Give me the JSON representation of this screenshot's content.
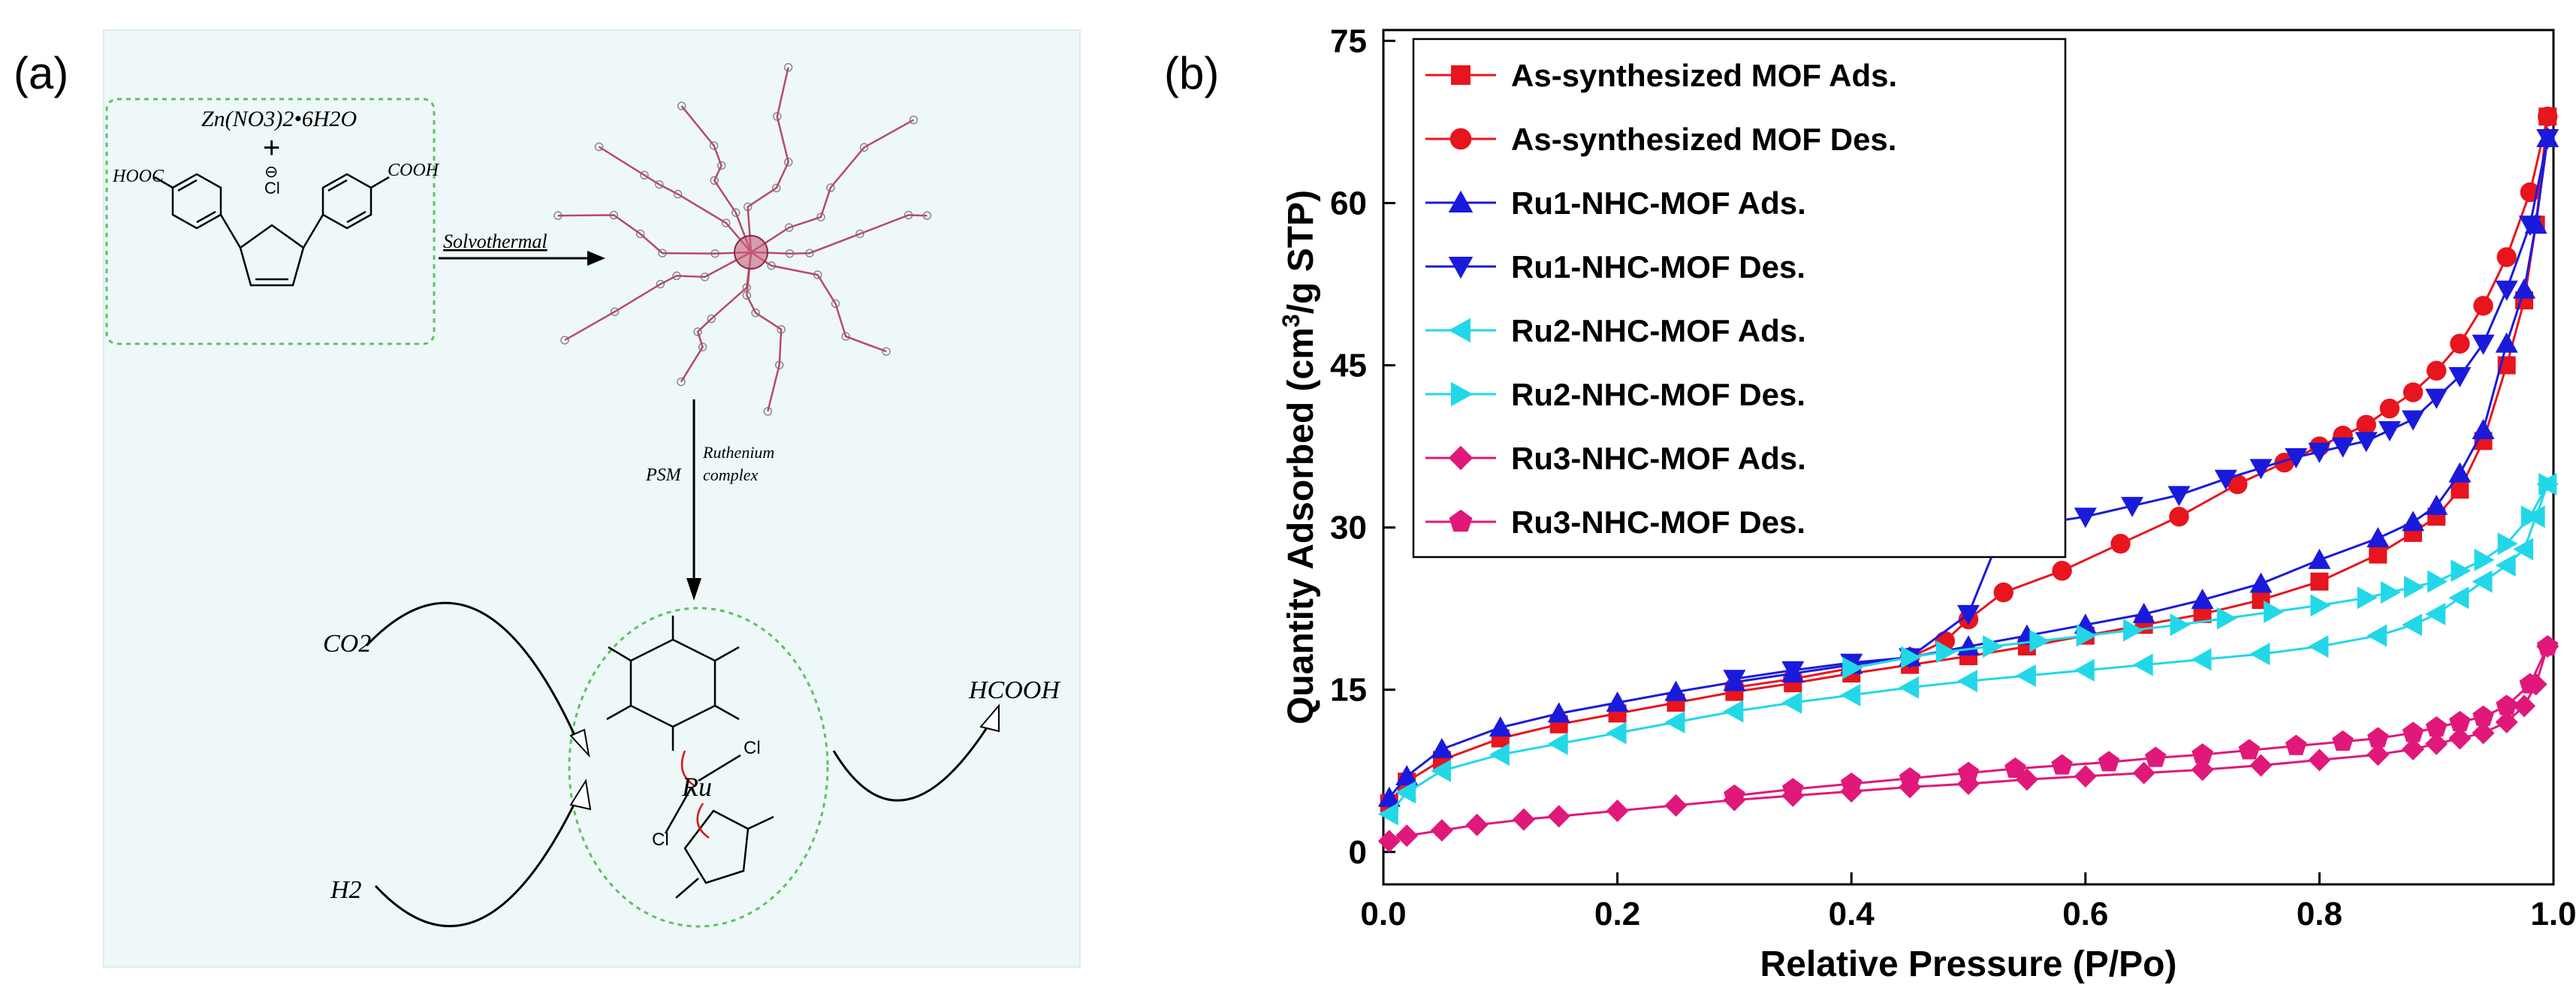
{
  "panel_a": {
    "label": "(a)",
    "reagent_line": "Zn(NO3)2•6H2O",
    "plus": "+",
    "left_group": "HOOC",
    "right_group": "COOH",
    "chloride": "Cl",
    "charge": "⊖",
    "arrow1_label": "Solvothermal",
    "arrow2_label_left": "PSM",
    "arrow2_label_right_1": "Ruthenium",
    "arrow2_label_right_2": "complex",
    "co2": "CO2",
    "h2": "H2",
    "product": "HCOOH",
    "metal": "Ru",
    "cl_top": "Cl",
    "cl_bottom": "Cl"
  },
  "panel_b": {
    "label": "(b)"
  },
  "chart_data": {
    "type": "line",
    "xlabel": "Relative Pressure (P/Po)",
    "ylabel_main": "Quantity Adsorbed (cm",
    "ylabel_sup": "3",
    "ylabel_end": "/g STP)",
    "xlim": [
      0.0,
      1.0
    ],
    "ylim": [
      -3,
      76
    ],
    "xticks": [
      "0.0",
      "0.2",
      "0.4",
      "0.6",
      "0.8",
      "1.0"
    ],
    "xtick_values": [
      0.0,
      0.2,
      0.4,
      0.6,
      0.8,
      1.0
    ],
    "yticks": [
      "0",
      "15",
      "30",
      "45",
      "60",
      "75"
    ],
    "ytick_values": [
      0,
      15,
      30,
      45,
      60,
      75
    ],
    "legend_position": "top-left",
    "series": [
      {
        "name": "As-synthesized MOF Ads.",
        "color": "#e8141e",
        "marker": "square",
        "x": [
          0.005,
          0.02,
          0.05,
          0.1,
          0.15,
          0.2,
          0.25,
          0.3,
          0.35,
          0.4,
          0.45,
          0.5,
          0.55,
          0.6,
          0.65,
          0.7,
          0.75,
          0.8,
          0.85,
          0.88,
          0.9,
          0.92,
          0.94,
          0.96,
          0.975,
          0.985,
          0.995
        ],
        "y": [
          4.5,
          6.5,
          8.5,
          10.5,
          11.8,
          12.8,
          13.8,
          14.8,
          15.6,
          16.5,
          17.3,
          18.1,
          19.0,
          20.0,
          21.0,
          22.0,
          23.3,
          25.0,
          27.5,
          29.5,
          31.0,
          33.5,
          38.0,
          45.0,
          51.0,
          58.0,
          68.0
        ]
      },
      {
        "name": "As-synthesized MOF Des.",
        "color": "#e8141e",
        "marker": "circle",
        "x": [
          0.995,
          0.98,
          0.96,
          0.94,
          0.92,
          0.9,
          0.88,
          0.86,
          0.84,
          0.82,
          0.8,
          0.77,
          0.73,
          0.68,
          0.63,
          0.58,
          0.53,
          0.5,
          0.48,
          0.45,
          0.4,
          0.35,
          0.3
        ],
        "y": [
          68.0,
          61.0,
          55.0,
          50.5,
          47.0,
          44.5,
          42.5,
          41.0,
          39.5,
          38.5,
          37.5,
          36.0,
          34.0,
          31.0,
          28.5,
          26.0,
          24.0,
          21.5,
          19.5,
          18.0,
          17.0,
          16.0,
          15.2
        ]
      },
      {
        "name": "Ru1-NHC-MOF Ads.",
        "color": "#1a1adc",
        "marker": "triangle-up",
        "x": [
          0.005,
          0.02,
          0.05,
          0.1,
          0.15,
          0.2,
          0.25,
          0.3,
          0.35,
          0.4,
          0.45,
          0.5,
          0.55,
          0.6,
          0.65,
          0.7,
          0.75,
          0.8,
          0.85,
          0.88,
          0.9,
          0.92,
          0.94,
          0.96,
          0.975,
          0.985,
          0.995
        ],
        "y": [
          5.0,
          7.0,
          9.5,
          11.5,
          12.8,
          13.8,
          14.8,
          15.7,
          16.5,
          17.3,
          18.0,
          19.0,
          20.0,
          21.0,
          22.0,
          23.3,
          24.8,
          27.0,
          29.0,
          30.5,
          32.0,
          35.0,
          39.0,
          47.0,
          52.0,
          58.0,
          66.0
        ]
      },
      {
        "name": "Ru1-NHC-MOF Des.",
        "color": "#1a1adc",
        "marker": "triangle-down",
        "x": [
          0.995,
          0.98,
          0.96,
          0.94,
          0.92,
          0.9,
          0.88,
          0.86,
          0.84,
          0.82,
          0.8,
          0.78,
          0.75,
          0.72,
          0.68,
          0.64,
          0.6,
          0.57,
          0.53,
          0.5,
          0.45,
          0.4,
          0.35,
          0.3
        ],
        "y": [
          66.0,
          58.0,
          52.0,
          47.0,
          44.0,
          42.0,
          40.0,
          39.0,
          38.0,
          37.5,
          37.0,
          36.5,
          35.5,
          34.5,
          33.0,
          32.0,
          31.0,
          30.5,
          30.0,
          22.0,
          18.0,
          17.5,
          16.8,
          16.0
        ]
      },
      {
        "name": "Ru2-NHC-MOF Ads.",
        "color": "#22d8e8",
        "marker": "triangle-left",
        "x": [
          0.005,
          0.02,
          0.05,
          0.1,
          0.15,
          0.2,
          0.25,
          0.3,
          0.35,
          0.4,
          0.45,
          0.5,
          0.55,
          0.6,
          0.65,
          0.7,
          0.75,
          0.8,
          0.85,
          0.88,
          0.9,
          0.92,
          0.94,
          0.96,
          0.975,
          0.985,
          0.995
        ],
        "y": [
          3.5,
          5.5,
          7.5,
          9.0,
          10.0,
          11.0,
          12.0,
          13.0,
          13.8,
          14.5,
          15.2,
          15.8,
          16.3,
          16.8,
          17.3,
          17.8,
          18.3,
          19.0,
          20.0,
          21.0,
          22.0,
          23.5,
          25.0,
          26.5,
          28.0,
          31.0,
          34.0
        ]
      },
      {
        "name": "Ru2-NHC-MOF Des.",
        "color": "#22d8e8",
        "marker": "triangle-right",
        "x": [
          0.995,
          0.98,
          0.96,
          0.94,
          0.92,
          0.9,
          0.88,
          0.86,
          0.84,
          0.8,
          0.76,
          0.72,
          0.68,
          0.64,
          0.6,
          0.56,
          0.52,
          0.48,
          0.45,
          0.4
        ],
        "y": [
          34.0,
          31.0,
          28.5,
          27.0,
          26.0,
          25.0,
          24.5,
          24.0,
          23.5,
          22.8,
          22.2,
          21.6,
          21.0,
          20.5,
          20.0,
          19.5,
          19.0,
          18.5,
          18.0,
          17.0
        ]
      },
      {
        "name": "Ru3-NHC-MOF Ads.",
        "color": "#e0187a",
        "marker": "diamond",
        "x": [
          0.005,
          0.02,
          0.05,
          0.08,
          0.12,
          0.15,
          0.2,
          0.25,
          0.3,
          0.35,
          0.4,
          0.45,
          0.5,
          0.55,
          0.6,
          0.65,
          0.7,
          0.75,
          0.8,
          0.85,
          0.88,
          0.9,
          0.92,
          0.94,
          0.96,
          0.975,
          0.985,
          0.995
        ],
        "y": [
          1.0,
          1.5,
          2.0,
          2.5,
          3.0,
          3.3,
          3.8,
          4.3,
          4.8,
          5.2,
          5.6,
          6.0,
          6.3,
          6.7,
          7.0,
          7.3,
          7.6,
          8.0,
          8.5,
          9.0,
          9.5,
          10.0,
          10.5,
          11.0,
          12.0,
          13.5,
          15.5,
          19.0
        ]
      },
      {
        "name": "Ru3-NHC-MOF Des.",
        "color": "#e0187a",
        "marker": "pentagon",
        "x": [
          0.995,
          0.98,
          0.96,
          0.94,
          0.92,
          0.9,
          0.88,
          0.85,
          0.82,
          0.78,
          0.74,
          0.7,
          0.66,
          0.62,
          0.58,
          0.54,
          0.5,
          0.45,
          0.4,
          0.35,
          0.3
        ],
        "y": [
          19.0,
          15.5,
          13.5,
          12.5,
          12.0,
          11.5,
          11.0,
          10.5,
          10.2,
          9.8,
          9.4,
          9.0,
          8.7,
          8.3,
          8.0,
          7.7,
          7.3,
          6.8,
          6.3,
          5.8,
          5.2
        ]
      }
    ]
  }
}
